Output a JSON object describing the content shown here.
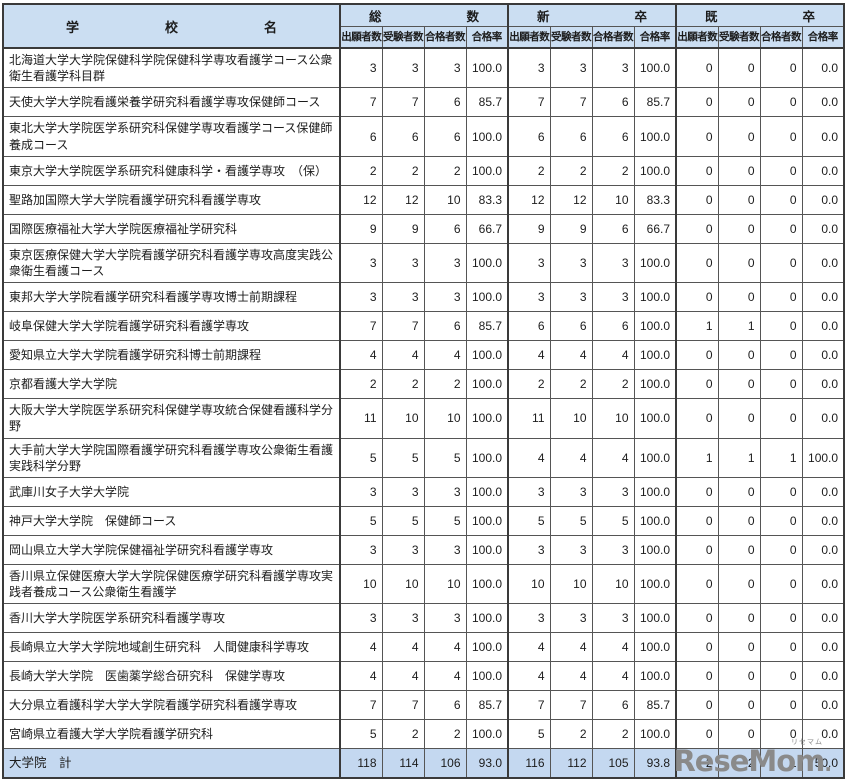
{
  "colors": {
    "header_bg": "#cbdef2",
    "total_bg": "#c4d8f0",
    "border": "#555555",
    "border_strong": "#3a3a3a",
    "logo": "#8a8a8a"
  },
  "table": {
    "header": {
      "school_column_label": "学校名",
      "groups": [
        "総数",
        "新卒",
        "既卒"
      ],
      "sub_columns": [
        "出願者数",
        "受験者数",
        "合格者数",
        "合格率"
      ]
    },
    "rows": [
      {
        "school": "北海道大学大学院保健科学院保健科学専攻看護学コース公衆衛生看護学科目群",
        "values": [
          "3",
          "3",
          "3",
          "100.0",
          "3",
          "3",
          "3",
          "100.0",
          "0",
          "0",
          "0",
          "0.0"
        ]
      },
      {
        "school": "天使大学大学院看護栄養学研究科看護学専攻保健師コース",
        "values": [
          "7",
          "7",
          "6",
          "85.7",
          "7",
          "7",
          "6",
          "85.7",
          "0",
          "0",
          "0",
          "0.0"
        ]
      },
      {
        "school": "東北大学大学院医学系研究科保健学専攻看護学コース保健師養成コース",
        "values": [
          "6",
          "6",
          "6",
          "100.0",
          "6",
          "6",
          "6",
          "100.0",
          "0",
          "0",
          "0",
          "0.0"
        ]
      },
      {
        "school": "東京大学大学院医学系研究科健康科学・看護学専攻　（保）",
        "values": [
          "2",
          "2",
          "2",
          "100.0",
          "2",
          "2",
          "2",
          "100.0",
          "0",
          "0",
          "0",
          "0.0"
        ]
      },
      {
        "school": "聖路加国際大学大学院看護学研究科看護学専攻",
        "values": [
          "12",
          "12",
          "10",
          "83.3",
          "12",
          "12",
          "10",
          "83.3",
          "0",
          "0",
          "0",
          "0.0"
        ]
      },
      {
        "school": "国際医療福祉大学大学院医療福祉学研究科",
        "values": [
          "9",
          "9",
          "6",
          "66.7",
          "9",
          "9",
          "6",
          "66.7",
          "0",
          "0",
          "0",
          "0.0"
        ]
      },
      {
        "school": "東京医療保健大学大学院看護学研究科看護学専攻高度実践公衆衛生看護コース",
        "values": [
          "3",
          "3",
          "3",
          "100.0",
          "3",
          "3",
          "3",
          "100.0",
          "0",
          "0",
          "0",
          "0.0"
        ]
      },
      {
        "school": "東邦大学大学院看護学研究科看護学専攻博士前期課程",
        "values": [
          "3",
          "3",
          "3",
          "100.0",
          "3",
          "3",
          "3",
          "100.0",
          "0",
          "0",
          "0",
          "0.0"
        ]
      },
      {
        "school": "岐阜保健大学大学院看護学研究科看護学専攻",
        "values": [
          "7",
          "7",
          "6",
          "85.7",
          "6",
          "6",
          "6",
          "100.0",
          "1",
          "1",
          "0",
          "0.0"
        ]
      },
      {
        "school": "愛知県立大学大学院看護学研究科博士前期課程",
        "values": [
          "4",
          "4",
          "4",
          "100.0",
          "4",
          "4",
          "4",
          "100.0",
          "0",
          "0",
          "0",
          "0.0"
        ]
      },
      {
        "school": "京都看護大学大学院",
        "values": [
          "2",
          "2",
          "2",
          "100.0",
          "2",
          "2",
          "2",
          "100.0",
          "0",
          "0",
          "0",
          "0.0"
        ]
      },
      {
        "school": "大阪大学大学院医学系研究科保健学専攻統合保健看護科学分野",
        "values": [
          "11",
          "10",
          "10",
          "100.0",
          "11",
          "10",
          "10",
          "100.0",
          "0",
          "0",
          "0",
          "0.0"
        ]
      },
      {
        "school": "大手前大学大学院国際看護学研究科看護学専攻公衆衛生看護実践科学分野",
        "values": [
          "5",
          "5",
          "5",
          "100.0",
          "4",
          "4",
          "4",
          "100.0",
          "1",
          "1",
          "1",
          "100.0"
        ]
      },
      {
        "school": "武庫川女子大学大学院",
        "values": [
          "3",
          "3",
          "3",
          "100.0",
          "3",
          "3",
          "3",
          "100.0",
          "0",
          "0",
          "0",
          "0.0"
        ]
      },
      {
        "school": "神戸大学大学院　保健師コース",
        "values": [
          "5",
          "5",
          "5",
          "100.0",
          "5",
          "5",
          "5",
          "100.0",
          "0",
          "0",
          "0",
          "0.0"
        ]
      },
      {
        "school": "岡山県立大学大学院保健福祉学研究科看護学専攻",
        "values": [
          "3",
          "3",
          "3",
          "100.0",
          "3",
          "3",
          "3",
          "100.0",
          "0",
          "0",
          "0",
          "0.0"
        ]
      },
      {
        "school": "香川県立保健医療大学大学院保健医療学研究科看護学専攻実践者養成コース公衆衛生看護学",
        "values": [
          "10",
          "10",
          "10",
          "100.0",
          "10",
          "10",
          "10",
          "100.0",
          "0",
          "0",
          "0",
          "0.0"
        ]
      },
      {
        "school": "香川大学大学院医学系研究科看護学専攻",
        "values": [
          "3",
          "3",
          "3",
          "100.0",
          "3",
          "3",
          "3",
          "100.0",
          "0",
          "0",
          "0",
          "0.0"
        ]
      },
      {
        "school": "長崎県立大学大学院地域創生研究科　人間健康科学専攻",
        "values": [
          "4",
          "4",
          "4",
          "100.0",
          "4",
          "4",
          "4",
          "100.0",
          "0",
          "0",
          "0",
          "0.0"
        ]
      },
      {
        "school": "長崎大学大学院　医歯薬学総合研究科　保健学専攻",
        "values": [
          "4",
          "4",
          "4",
          "100.0",
          "4",
          "4",
          "4",
          "100.0",
          "0",
          "0",
          "0",
          "0.0"
        ]
      },
      {
        "school": "大分県立看護科学大学大学院看護学研究科看護学専攻",
        "values": [
          "7",
          "7",
          "6",
          "85.7",
          "7",
          "7",
          "6",
          "85.7",
          "0",
          "0",
          "0",
          "0.0"
        ]
      },
      {
        "school": "宮崎県立看護大学大学院看護学研究科",
        "values": [
          "5",
          "2",
          "2",
          "100.0",
          "5",
          "2",
          "2",
          "100.0",
          "0",
          "0",
          "0",
          "0.0"
        ]
      }
    ],
    "total_row": {
      "label": "大学院　計",
      "values": [
        "118",
        "114",
        "106",
        "93.0",
        "116",
        "112",
        "105",
        "93.8",
        "2",
        "2",
        "1",
        "50.0"
      ]
    }
  },
  "footer": {
    "logo_text": "ReseMom",
    "logo_period": ".",
    "logo_ruby": "リセマム"
  }
}
